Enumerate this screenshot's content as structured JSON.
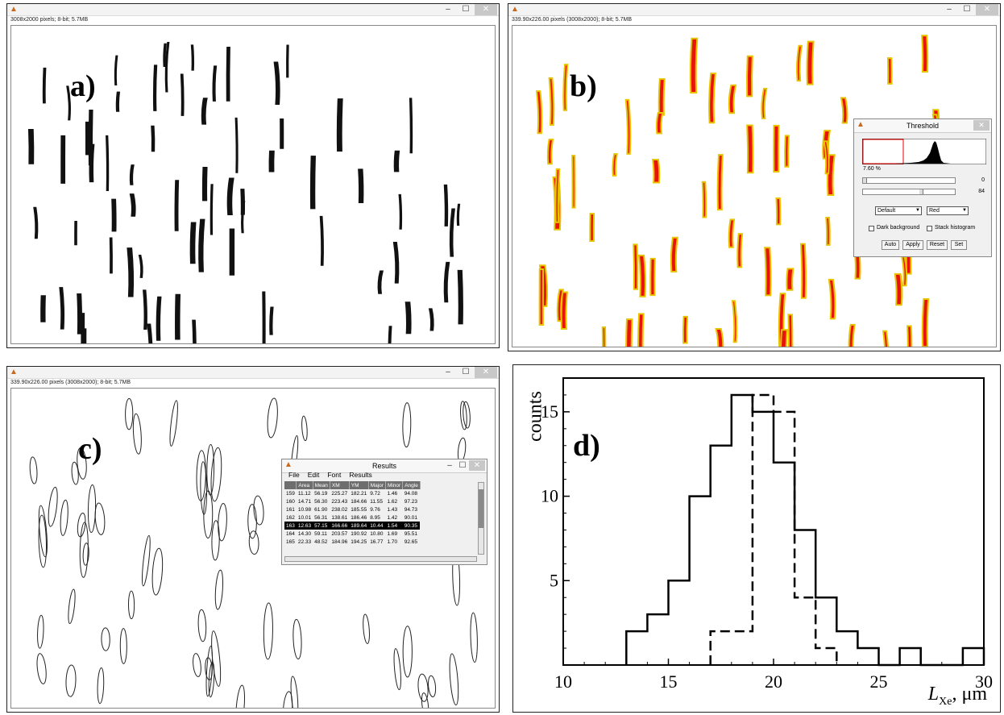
{
  "panel_a": {
    "info": "3008x2000 pixels; 8-bit; 5.7MB",
    "label": "a)"
  },
  "panel_b": {
    "info": "339.90x226.00 pixels (3008x2000); 8-bit; 5.7MB",
    "label": "b)"
  },
  "panel_c": {
    "info": "339.90x226.00 pixels (3008x2000); 8-bit; 5.7MB",
    "label": "c)"
  },
  "panel_d": {
    "label": "d)"
  },
  "window_buttons": {
    "minimize": "–",
    "maximize": "☐",
    "close": "✕"
  },
  "threshold": {
    "title": "Threshold",
    "percent": "7.60 %",
    "slider1_value": "0",
    "slider2_value": "84",
    "method": "Default",
    "mode": "Red",
    "dark_background": "Dark background",
    "stack_histogram": "Stack histogram",
    "buttons": [
      "Auto",
      "Apply",
      "Reset",
      "Set"
    ]
  },
  "results": {
    "title": "Results",
    "menu": [
      "File",
      "Edit",
      "Font",
      "Results"
    ],
    "columns": [
      "",
      "Area",
      "Mean",
      "XM",
      "YM",
      "Major",
      "Minor",
      "Angle"
    ],
    "rows": [
      [
        "159",
        "11.12",
        "56.19",
        "225.27",
        "182.21",
        "9.72",
        "1.46",
        "94.08"
      ],
      [
        "160",
        "14.71",
        "56.30",
        "223.43",
        "184.66",
        "11.55",
        "1.62",
        "97.23"
      ],
      [
        "161",
        "10.98",
        "61.90",
        "238.02",
        "185.55",
        "9.76",
        "1.43",
        "94.73"
      ],
      [
        "162",
        "10.01",
        "56.31",
        "138.61",
        "186.46",
        "8.95",
        "1.42",
        "90.01"
      ],
      [
        "163",
        "12.63",
        "57.15",
        "166.66",
        "189.64",
        "10.44",
        "1.54",
        "90.35"
      ],
      [
        "164",
        "14.30",
        "59.11",
        "203.57",
        "190.92",
        "10.80",
        "1.69",
        "95.51"
      ],
      [
        "165",
        "22.33",
        "48.52",
        "184.96",
        "194.25",
        "16.77",
        "1.70",
        "92.65"
      ]
    ],
    "selected_row": "163"
  },
  "chart_data": {
    "type": "histogram",
    "title": "",
    "xlabel": "L_Xe, μm",
    "xlabel_main": "L",
    "xlabel_sub": "Xe",
    "xlabel_unit": ", μm",
    "ylabel": "counts",
    "xlim": [
      10,
      30
    ],
    "ylim": [
      0,
      17
    ],
    "xticks": [
      10,
      15,
      20,
      25,
      30
    ],
    "yticks": [
      5,
      10,
      15
    ],
    "bin_width": 1,
    "series": [
      {
        "style": "solid",
        "bin_starts": [
          13,
          14,
          15,
          16,
          17,
          18,
          19,
          20,
          21,
          22,
          23,
          24,
          25,
          26,
          27,
          28,
          29
        ],
        "values": [
          2,
          3,
          5,
          10,
          13,
          16,
          15,
          12,
          8,
          4,
          2,
          1,
          0,
          1,
          0,
          0,
          1
        ]
      },
      {
        "style": "dashed",
        "bin_starts": [
          17,
          18,
          19,
          20,
          21,
          22
        ],
        "values": [
          2,
          2,
          16,
          15,
          4,
          1
        ]
      }
    ]
  }
}
